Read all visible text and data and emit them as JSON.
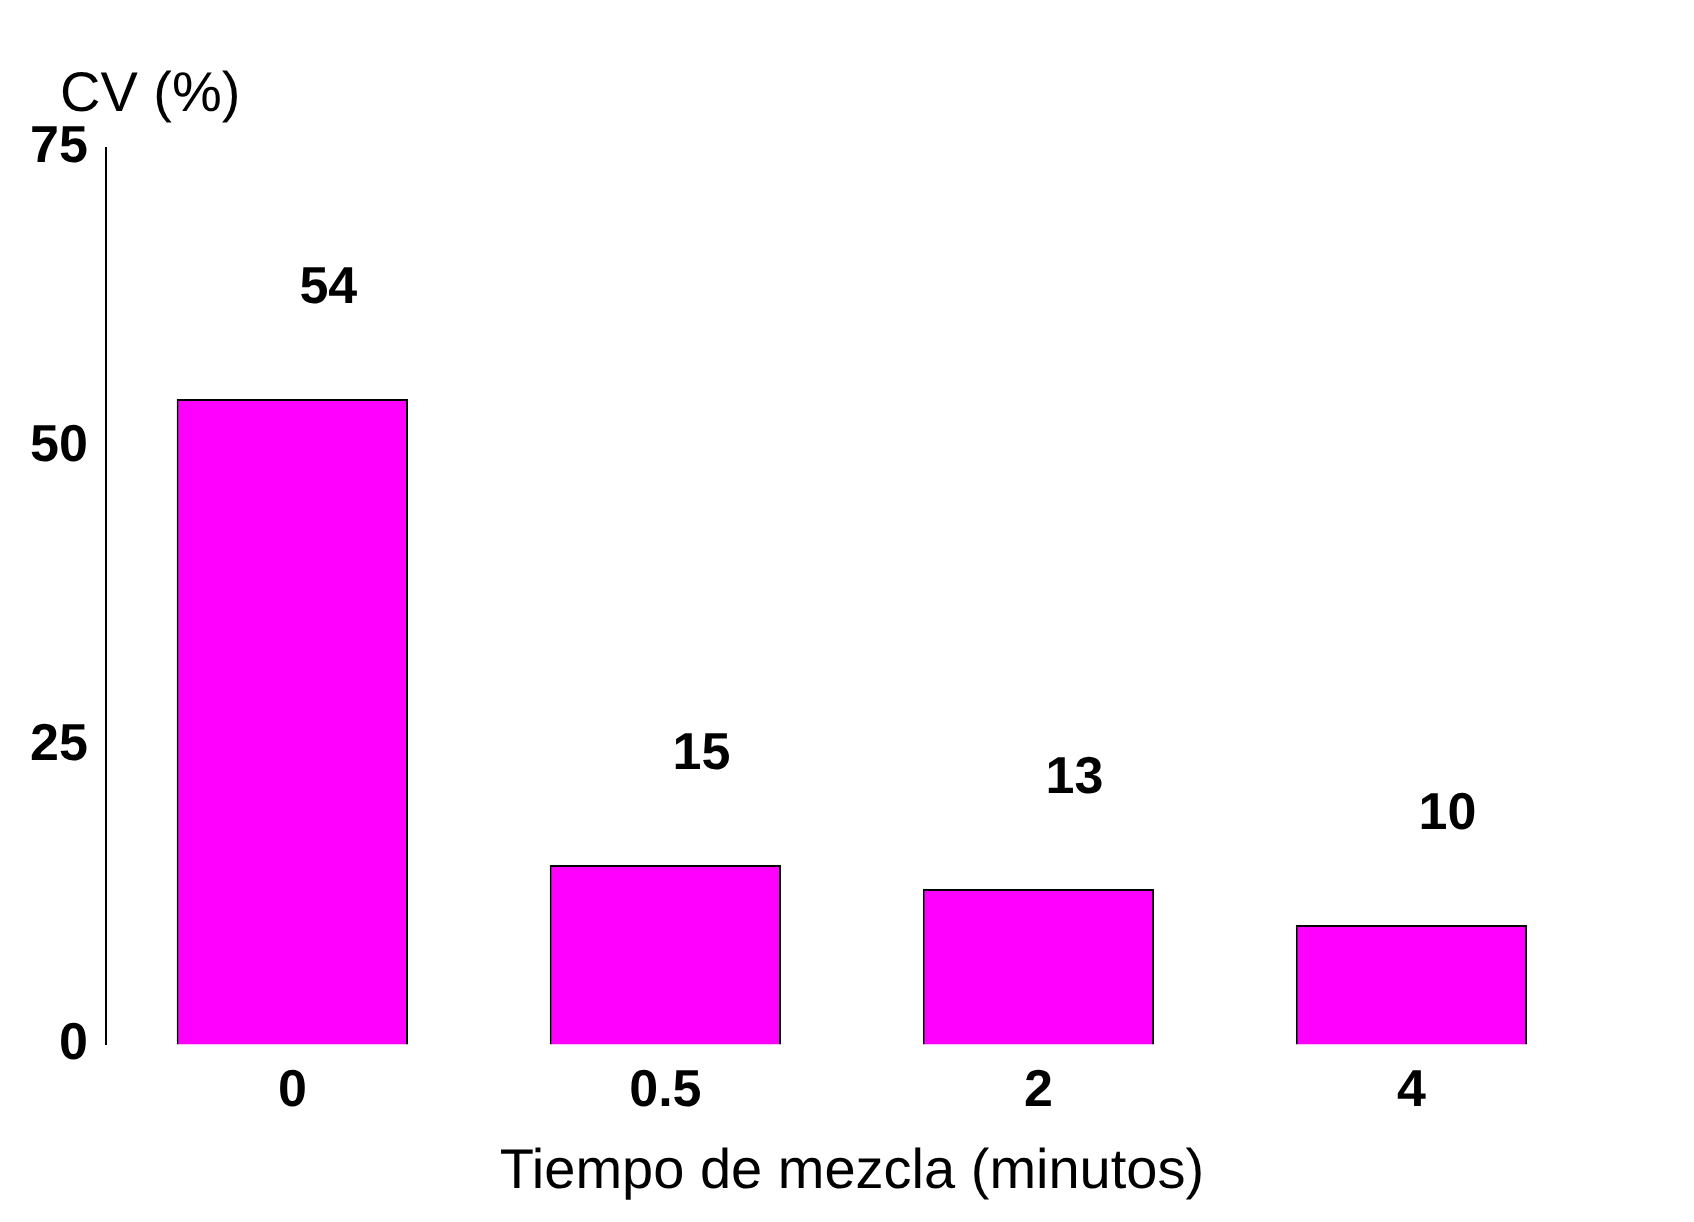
{
  "chart_data": {
    "type": "bar",
    "xlabel": "Tiempo de mezcla (minutos)",
    "ylabel": "CV (%)",
    "categories": [
      "0",
      "0.5",
      "2",
      "4"
    ],
    "values": [
      54,
      15,
      13,
      10
    ],
    "color": "#ff00ff",
    "ylim": [
      0,
      75
    ],
    "yticks": [
      0,
      25,
      50,
      75
    ],
    "grid": false,
    "legend": false,
    "data_labels": true
  }
}
